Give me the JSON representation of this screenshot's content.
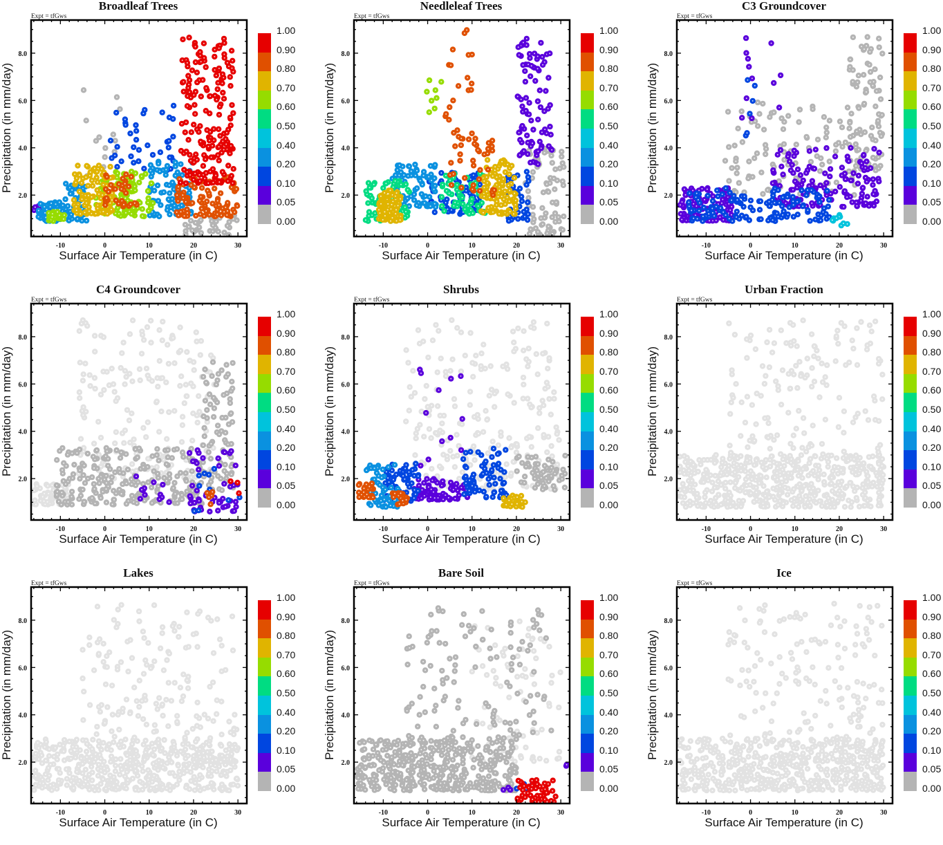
{
  "figure": {
    "expt_label": "Expt = tfGws",
    "xlabel": "Surface Air Temperature (in C)",
    "ylabel": "Precipitation (in mm/day)"
  },
  "colorbar": {
    "labels": [
      "1.00",
      "0.90",
      "0.80",
      "0.70",
      "0.60",
      "0.50",
      "0.40",
      "0.20",
      "0.10",
      "0.05",
      "0.00"
    ],
    "colors": [
      "#e60000",
      "#e05000",
      "#e0b400",
      "#96dc00",
      "#00dc82",
      "#00c3dc",
      "#0a91e0",
      "#0046e0",
      "#5a00dc",
      "#b4b4b4"
    ],
    "bounds": [
      1.0,
      0.9,
      0.8,
      0.7,
      0.6,
      0.5,
      0.4,
      0.2,
      0.1,
      0.05,
      0.0
    ]
  },
  "chart_data": [
    {
      "type": "scatter",
      "title": "Broadleaf Trees",
      "xlabel": "Surface Air Temperature (in C)",
      "ylabel": "Precipitation (in mm/day)",
      "xlim": [
        -16.6,
        32
      ],
      "ylim": [
        0.25,
        9.4
      ],
      "xticks": [
        "-10",
        "0",
        "10",
        "20",
        "30"
      ],
      "xtick_values": [
        -10,
        0,
        10,
        20,
        30
      ],
      "yticks": [
        "2.0",
        "4.0",
        "6.0",
        "8.0"
      ],
      "ytick_values": [
        2,
        4,
        6,
        8
      ],
      "clusters": [
        {
          "x": [
            -15,
            -9
          ],
          "y": [
            0.9,
            1.7
          ],
          "v": 0.3,
          "n": 70
        },
        {
          "x": [
            -13,
            -9
          ],
          "y": [
            0.9,
            1.3
          ],
          "v": 0.65,
          "n": 25
        },
        {
          "x": [
            -9,
            -4
          ],
          "y": [
            0.9,
            2.5
          ],
          "v": 0.25,
          "n": 60
        },
        {
          "x": [
            -7,
            2
          ],
          "y": [
            1.2,
            3.3
          ],
          "v": 0.75,
          "n": 110
        },
        {
          "x": [
            -2,
            7
          ],
          "y": [
            1.2,
            3
          ],
          "v": 0.7,
          "n": 90
        },
        {
          "x": [
            0,
            8
          ],
          "y": [
            1.5,
            3
          ],
          "v": 0.85,
          "n": 35
        },
        {
          "x": [
            3,
            11
          ],
          "y": [
            1.1,
            3
          ],
          "v": 0.62,
          "n": 50
        },
        {
          "x": [
            10,
            20
          ],
          "y": [
            1.1,
            3.5
          ],
          "v": 0.3,
          "n": 90
        },
        {
          "x": [
            0,
            16
          ],
          "y": [
            3,
            6
          ],
          "v": 0.15,
          "n": 40
        },
        {
          "x": [
            16,
            30
          ],
          "y": [
            1.1,
            2.8
          ],
          "v": 0.85,
          "n": 110
        },
        {
          "x": [
            17,
            29
          ],
          "y": [
            2.5,
            8.7
          ],
          "v": 0.95,
          "n": 200
        },
        {
          "x": [
            18,
            30
          ],
          "y": [
            0.3,
            1.2
          ],
          "v": 0.0,
          "n": 40
        },
        {
          "x": [
            -16,
            -12
          ],
          "y": [
            1.2,
            1.6
          ],
          "v": 0.06,
          "n": 15
        },
        {
          "x": [
            -5,
            5
          ],
          "y": [
            2.5,
            7.2
          ],
          "v": 0.0,
          "n": 15
        }
      ]
    },
    {
      "type": "scatter",
      "title": "Needleleaf Trees",
      "xlabel": "Surface Air Temperature (in C)",
      "ylabel": "Precipitation (in mm/day)",
      "xlim": [
        -16.6,
        32
      ],
      "ylim": [
        0.25,
        9.4
      ],
      "xticks": [
        "-10",
        "0",
        "10",
        "20",
        "30"
      ],
      "xtick_values": [
        -10,
        0,
        10,
        20,
        30
      ],
      "yticks": [
        "2.0",
        "4.0",
        "6.0",
        "8.0"
      ],
      "ytick_values": [
        2,
        4,
        6,
        8
      ],
      "clusters": [
        {
          "x": [
            -11,
            -6
          ],
          "y": [
            0.9,
            2.2
          ],
          "v": 0.75,
          "n": 100
        },
        {
          "x": [
            -14,
            -4
          ],
          "y": [
            0.9,
            2.6
          ],
          "v": 0.55,
          "n": 70
        },
        {
          "x": [
            -8,
            2
          ],
          "y": [
            1.5,
            3.3
          ],
          "v": 0.3,
          "n": 80
        },
        {
          "x": [
            0,
            12
          ],
          "y": [
            1.2,
            3
          ],
          "v": 0.15,
          "n": 90
        },
        {
          "x": [
            3,
            13
          ],
          "y": [
            1.2,
            3
          ],
          "v": 0.6,
          "n": 60
        },
        {
          "x": [
            5,
            15
          ],
          "y": [
            2,
            4.5
          ],
          "v": 0.85,
          "n": 40
        },
        {
          "x": [
            12,
            20
          ],
          "y": [
            1.2,
            3.5
          ],
          "v": 0.75,
          "n": 110
        },
        {
          "x": [
            18,
            23
          ],
          "y": [
            0.9,
            3
          ],
          "v": 0.15,
          "n": 40
        },
        {
          "x": [
            20,
            28
          ],
          "y": [
            3.3,
            8.7
          ],
          "v": 0.07,
          "n": 90
        },
        {
          "x": [
            22,
            31
          ],
          "y": [
            0.3,
            4
          ],
          "v": 0.0,
          "n": 80
        },
        {
          "x": [
            4,
            10
          ],
          "y": [
            4.5,
            9
          ],
          "v": 0.85,
          "n": 20
        },
        {
          "x": [
            -1,
            4
          ],
          "y": [
            5.5,
            7.2
          ],
          "v": 0.7,
          "n": 8
        }
      ]
    },
    {
      "type": "scatter",
      "title": "C3 Groundcover",
      "xlabel": "Surface Air Temperature (in C)",
      "ylabel": "Precipitation (in mm/day)",
      "xlim": [
        -16.6,
        32
      ],
      "ylim": [
        0.25,
        9.4
      ],
      "xticks": [
        "-10",
        "0",
        "10",
        "20",
        "30"
      ],
      "xtick_values": [
        -10,
        0,
        10,
        20,
        30
      ],
      "yticks": [
        "2.0",
        "4.0",
        "6.0",
        "8.0"
      ],
      "ytick_values": [
        2,
        4,
        6,
        8
      ],
      "clusters": [
        {
          "x": [
            -16,
            -4
          ],
          "y": [
            0.9,
            2.3
          ],
          "v": 0.07,
          "n": 120
        },
        {
          "x": [
            -14,
            18
          ],
          "y": [
            0.9,
            2.3
          ],
          "v": 0.15,
          "n": 150
        },
        {
          "x": [
            5,
            29
          ],
          "y": [
            1.5,
            4
          ],
          "v": 0.07,
          "n": 150
        },
        {
          "x": [
            18,
            23
          ],
          "y": [
            0.7,
            1.2
          ],
          "v": 0.45,
          "n": 10
        },
        {
          "x": [
            -6,
            25
          ],
          "y": [
            2,
            6
          ],
          "v": 0.0,
          "n": 110
        },
        {
          "x": [
            22,
            30
          ],
          "y": [
            3,
            8.7
          ],
          "v": 0.0,
          "n": 90
        },
        {
          "x": [
            -2,
            8
          ],
          "y": [
            4.5,
            9
          ],
          "v": 0.07,
          "n": 12
        },
        {
          "x": [
            -2,
            1
          ],
          "y": [
            4.5,
            7
          ],
          "v": 0.15,
          "n": 6
        }
      ]
    },
    {
      "type": "scatter",
      "title": "C4 Groundcover",
      "xlabel": "Surface Air Temperature (in C)",
      "ylabel": "Precipitation (in mm/day)",
      "xlim": [
        -16.6,
        32
      ],
      "ylim": [
        0.25,
        9.4
      ],
      "xticks": [
        "-10",
        "0",
        "10",
        "20",
        "30"
      ],
      "xtick_values": [
        -10,
        0,
        10,
        20,
        30
      ],
      "yticks": [
        "2.0",
        "4.0",
        "6.0",
        "8.0"
      ],
      "ytick_values": [
        2,
        4,
        6,
        8
      ],
      "clusters": [
        {
          "x": [
            -16,
            -8
          ],
          "y": [
            0.9,
            1.8
          ],
          "v": 0.0,
          "n": 60,
          "light": true
        },
        {
          "x": [
            -6,
            25
          ],
          "y": [
            2,
            8.7
          ],
          "v": 0.0,
          "n": 200,
          "light": true
        },
        {
          "x": [
            -11,
            22
          ],
          "y": [
            0.9,
            3.3
          ],
          "v": 0.0,
          "n": 250
        },
        {
          "x": [
            22,
            29
          ],
          "y": [
            1.5,
            7
          ],
          "v": 0.0,
          "n": 90
        },
        {
          "x": [
            19,
            30
          ],
          "y": [
            0.6,
            3.3
          ],
          "v": 0.07,
          "n": 50
        },
        {
          "x": [
            7,
            15
          ],
          "y": [
            1,
            2.2
          ],
          "v": 0.07,
          "n": 12
        },
        {
          "x": [
            20,
            31
          ],
          "y": [
            0.5,
            2.5
          ],
          "v": 0.2,
          "n": 10
        },
        {
          "x": [
            22,
            28
          ],
          "y": [
            0.8,
            1.5
          ],
          "v": 0.85,
          "n": 5
        },
        {
          "x": [
            27,
            32
          ],
          "y": [
            1.1,
            1.9
          ],
          "v": 0.95,
          "n": 3
        }
      ]
    },
    {
      "type": "scatter",
      "title": "Shrubs",
      "xlabel": "Surface Air Temperature (in C)",
      "ylabel": "Precipitation (in mm/day)",
      "xlim": [
        -16.6,
        32
      ],
      "ylim": [
        0.25,
        9.4
      ],
      "xticks": [
        "-10",
        "0",
        "10",
        "20",
        "30"
      ],
      "xtick_values": [
        -10,
        0,
        10,
        20,
        30
      ],
      "yticks": [
        "2.0",
        "4.0",
        "6.0",
        "8.0"
      ],
      "ytick_values": [
        2,
        4,
        6,
        8
      ],
      "clusters": [
        {
          "x": [
            -16,
            -12
          ],
          "y": [
            1.2,
            1.8
          ],
          "v": 0.85,
          "n": 25
        },
        {
          "x": [
            -8,
            -4
          ],
          "y": [
            0.9,
            1.4
          ],
          "v": 0.85,
          "n": 18
        },
        {
          "x": [
            -14,
            -6
          ],
          "y": [
            0.8,
            2.6
          ],
          "v": 0.35,
          "n": 70
        },
        {
          "x": [
            -10,
            -2
          ],
          "y": [
            1,
            2.7
          ],
          "v": 0.15,
          "n": 60
        },
        {
          "x": [
            -3,
            10
          ],
          "y": [
            1.1,
            2
          ],
          "v": 0.07,
          "n": 90
        },
        {
          "x": [
            8,
            18
          ],
          "y": [
            1.2,
            3.3
          ],
          "v": 0.15,
          "n": 70
        },
        {
          "x": [
            17,
            22
          ],
          "y": [
            0.8,
            1.3
          ],
          "v": 0.75,
          "n": 30
        },
        {
          "x": [
            -5,
            30
          ],
          "y": [
            1.5,
            8.7
          ],
          "v": 0.0,
          "n": 250,
          "light": true
        },
        {
          "x": [
            20,
            31
          ],
          "y": [
            1.5,
            3
          ],
          "v": 0.0,
          "n": 60
        },
        {
          "x": [
            -2,
            8
          ],
          "y": [
            2.5,
            7.2
          ],
          "v": 0.07,
          "n": 12
        }
      ]
    },
    {
      "type": "scatter",
      "title": "Urban Fraction",
      "xlabel": "Surface Air Temperature (in C)",
      "ylabel": "Precipitation (in mm/day)",
      "xlim": [
        -16.6,
        32
      ],
      "ylim": [
        0.25,
        9.4
      ],
      "xticks": [
        "-10",
        "0",
        "10",
        "20",
        "30"
      ],
      "xtick_values": [
        -10,
        0,
        10,
        20,
        30
      ],
      "yticks": [
        "2.0",
        "4.0",
        "6.0",
        "8.0"
      ],
      "ytick_values": [
        2,
        4,
        6,
        8
      ],
      "clusters": [
        {
          "x": [
            -16,
            30
          ],
          "y": [
            0.8,
            3
          ],
          "v": 0.0,
          "n": 500,
          "light": true
        },
        {
          "x": [
            -5,
            30
          ],
          "y": [
            2,
            8.7
          ],
          "v": 0.0,
          "n": 200,
          "light": true
        }
      ]
    },
    {
      "type": "scatter",
      "title": "Lakes",
      "xlabel": "Surface Air Temperature (in C)",
      "ylabel": "Precipitation (in mm/day)",
      "xlim": [
        -16.6,
        32
      ],
      "ylim": [
        0.25,
        9.4
      ],
      "xticks": [
        "-10",
        "0",
        "10",
        "20",
        "30"
      ],
      "xtick_values": [
        -10,
        0,
        10,
        20,
        30
      ],
      "yticks": [
        "2.0",
        "4.0",
        "6.0",
        "8.0"
      ],
      "ytick_values": [
        2,
        4,
        6,
        8
      ],
      "clusters": [
        {
          "x": [
            -16,
            30
          ],
          "y": [
            0.8,
            3
          ],
          "v": 0.0,
          "n": 500,
          "light": true
        },
        {
          "x": [
            -5,
            30
          ],
          "y": [
            2,
            8.7
          ],
          "v": 0.0,
          "n": 200,
          "light": true
        }
      ]
    },
    {
      "type": "scatter",
      "title": "Bare Soil",
      "xlabel": "Surface Air Temperature (in C)",
      "ylabel": "Precipitation (in mm/day)",
      "xlim": [
        -16.6,
        32
      ],
      "ylim": [
        0.25,
        9.4
      ],
      "xticks": [
        "-10",
        "0",
        "10",
        "20",
        "30"
      ],
      "xtick_values": [
        -10,
        0,
        10,
        20,
        30
      ],
      "yticks": [
        "2.0",
        "4.0",
        "6.0",
        "8.0"
      ],
      "ytick_values": [
        2,
        4,
        6,
        8
      ],
      "clusters": [
        {
          "x": [
            -16,
            20
          ],
          "y": [
            0.8,
            3
          ],
          "v": 0.0,
          "n": 450
        },
        {
          "x": [
            -5,
            28
          ],
          "y": [
            3,
            8.7
          ],
          "v": 0.0,
          "n": 120
        },
        {
          "x": [
            10,
            30
          ],
          "y": [
            2,
            8
          ],
          "v": 0.0,
          "n": 80,
          "light": true
        },
        {
          "x": [
            20,
            29
          ],
          "y": [
            0.3,
            1.3
          ],
          "v": 0.95,
          "n": 60
        },
        {
          "x": [
            17,
            19
          ],
          "y": [
            0.8,
            1.1
          ],
          "v": 0.07,
          "n": 4
        },
        {
          "x": [
            18,
            25
          ],
          "y": [
            0.7,
            1.2
          ],
          "v": 0.2,
          "n": 4
        },
        {
          "x": [
            25,
            26
          ],
          "y": [
            0.3,
            0.6
          ],
          "v": 0.75,
          "n": 3
        },
        {
          "x": [
            31,
            32
          ],
          "y": [
            1.8,
            1.9
          ],
          "v": 0.07,
          "n": 2
        }
      ]
    },
    {
      "type": "scatter",
      "title": "Ice",
      "xlabel": "Surface Air Temperature (in C)",
      "ylabel": "Precipitation (in mm/day)",
      "xlim": [
        -16.6,
        32
      ],
      "ylim": [
        0.25,
        9.4
      ],
      "xticks": [
        "-10",
        "0",
        "10",
        "20",
        "30"
      ],
      "xtick_values": [
        -10,
        0,
        10,
        20,
        30
      ],
      "yticks": [
        "2.0",
        "4.0",
        "6.0",
        "8.0"
      ],
      "ytick_values": [
        2,
        4,
        6,
        8
      ],
      "clusters": [
        {
          "x": [
            -16,
            30
          ],
          "y": [
            0.8,
            3
          ],
          "v": 0.0,
          "n": 500,
          "light": true
        },
        {
          "x": [
            -5,
            30
          ],
          "y": [
            2,
            8.7
          ],
          "v": 0.0,
          "n": 200,
          "light": true
        }
      ]
    }
  ]
}
